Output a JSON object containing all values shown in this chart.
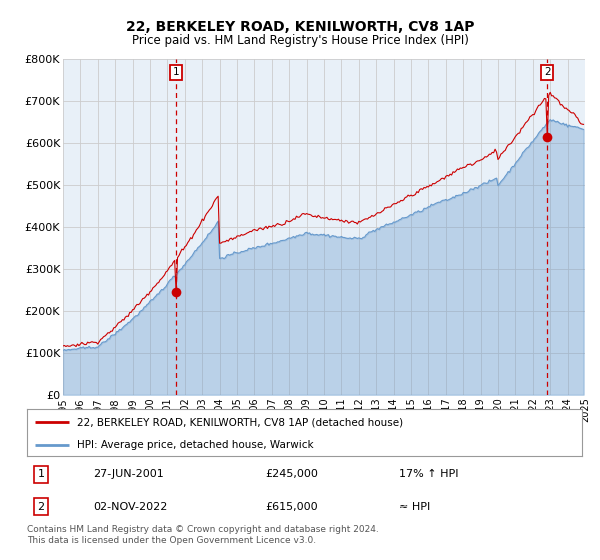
{
  "title": "22, BERKELEY ROAD, KENILWORTH, CV8 1AP",
  "subtitle": "Price paid vs. HM Land Registry's House Price Index (HPI)",
  "ylabel_ticks": [
    "£0",
    "£100K",
    "£200K",
    "£300K",
    "£400K",
    "£500K",
    "£600K",
    "£700K",
    "£800K"
  ],
  "ylim": [
    0,
    800000
  ],
  "xlim_start": 1995,
  "xlim_end": 2025,
  "sale1_date": "27-JUN-2001",
  "sale1_x": 2001.49,
  "sale1_price": 245000,
  "sale1_label": "17% ↑ HPI",
  "sale2_date": "02-NOV-2022",
  "sale2_x": 2022.84,
  "sale2_price": 615000,
  "sale2_label": "≈ HPI",
  "legend_line1": "22, BERKELEY ROAD, KENILWORTH, CV8 1AP (detached house)",
  "legend_line2": "HPI: Average price, detached house, Warwick",
  "footnote": "Contains HM Land Registry data © Crown copyright and database right 2024.\nThis data is licensed under the Open Government Licence v3.0.",
  "line_color_red": "#cc0000",
  "line_color_blue": "#6699cc",
  "fill_color_blue": "#ddeeff",
  "grid_color": "#cccccc",
  "bg_color": "#ffffff",
  "chart_bg": "#e8f0f8",
  "box_color_red": "#cc0000"
}
